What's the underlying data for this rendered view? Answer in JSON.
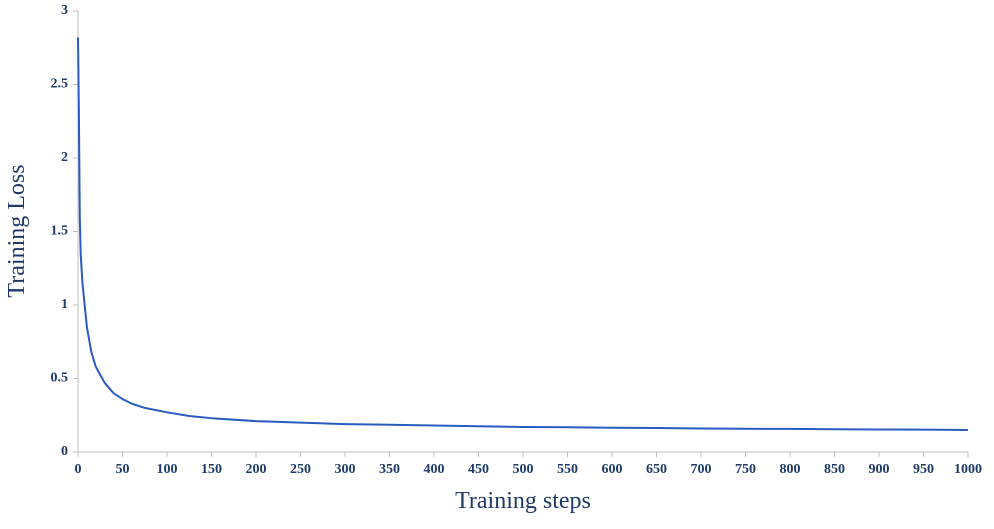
{
  "chart_data": {
    "type": "line",
    "x_label": "Training steps",
    "y_label": "Training Loss",
    "x": [
      0,
      1,
      2,
      3,
      5,
      10,
      15,
      20,
      30,
      40,
      50,
      60,
      75,
      100,
      125,
      150,
      200,
      250,
      300,
      350,
      400,
      450,
      500,
      550,
      600,
      650,
      700,
      750,
      800,
      850,
      900,
      950,
      1000
    ],
    "series": [
      {
        "name": "Training Loss",
        "color": "#2a5cbf",
        "values": [
          2.82,
          2.3,
          1.6,
          1.35,
          1.15,
          0.85,
          0.68,
          0.58,
          0.47,
          0.4,
          0.36,
          0.33,
          0.3,
          0.27,
          0.245,
          0.23,
          0.21,
          0.2,
          0.19,
          0.185,
          0.18,
          0.175,
          0.17,
          0.168,
          0.165,
          0.163,
          0.16,
          0.158,
          0.157,
          0.155,
          0.153,
          0.152,
          0.15
        ]
      }
    ],
    "xlim": [
      0,
      1000
    ],
    "xticks": [
      0,
      50,
      100,
      150,
      200,
      250,
      300,
      350,
      400,
      450,
      500,
      550,
      600,
      650,
      700,
      750,
      800,
      850,
      900,
      950,
      1000
    ],
    "ylim": [
      0,
      3
    ],
    "yticks": [
      0,
      0.5,
      1,
      1.5,
      2,
      2.5,
      3
    ],
    "grid": false
  }
}
